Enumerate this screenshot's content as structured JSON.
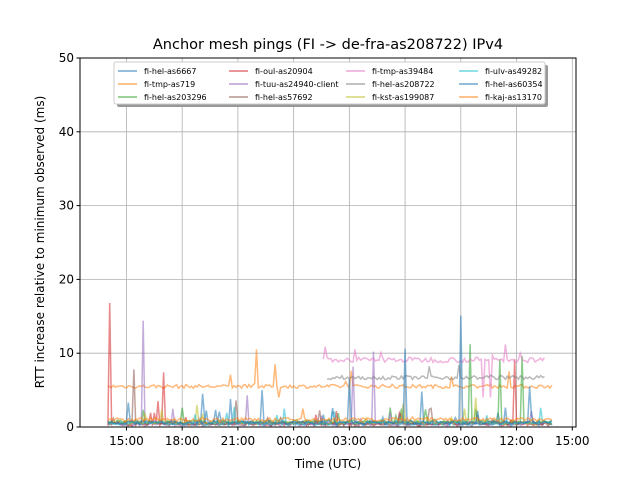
{
  "chart_data": {
    "type": "line",
    "title": "Anchor mesh pings (FI -> de-fra-as208722) IPv4",
    "xlabel": "Time (UTC)",
    "ylabel": "RTT increase relative to minimum observed (ms)",
    "ylim": [
      0,
      50
    ],
    "xlim_hours": [
      12.5,
      39.2
    ],
    "grid": true,
    "legend_placement": "top-center",
    "yticks": [
      0,
      10,
      20,
      30,
      40,
      50
    ],
    "xticks": [
      {
        "h": 15,
        "label": "15:00"
      },
      {
        "h": 18,
        "label": "18:00"
      },
      {
        "h": 21,
        "label": "21:00"
      },
      {
        "h": 24,
        "label": "00:00"
      },
      {
        "h": 27,
        "label": "03:00"
      },
      {
        "h": 30,
        "label": "06:00"
      },
      {
        "h": 33,
        "label": "09:00"
      },
      {
        "h": 36,
        "label": "12:00"
      },
      {
        "h": 39,
        "label": "15:00"
      }
    ],
    "series": [
      {
        "name": "fi-hel-as6667",
        "color": "#1f77b4",
        "start": 14,
        "end": 38,
        "base": 0.5,
        "spikes": [
          [
            15.1,
            3.3
          ],
          [
            19.1,
            4.5
          ],
          [
            20.6,
            3.8
          ],
          [
            22.3,
            5
          ],
          [
            30.9,
            4.8
          ]
        ]
      },
      {
        "name": "fi-tmp-as719",
        "color": "#ff7f0e",
        "start": 14,
        "end": 38,
        "base": 5.5,
        "spikes": [
          [
            22.0,
            10.5
          ],
          [
            23.0,
            8.5
          ],
          [
            23.2,
            4
          ]
        ]
      },
      {
        "name": "fi-hel-as203296",
        "color": "#2ca02c",
        "start": 14,
        "end": 38,
        "base": 0.7,
        "spikes": [
          [
            33.5,
            11.2
          ],
          [
            35.1,
            9.2
          ],
          [
            36.3,
            9.6
          ]
        ]
      },
      {
        "name": "fi-oul-as20904",
        "color": "#d62728",
        "start": 14,
        "end": 38,
        "base": 0.4,
        "spikes": [
          [
            14.1,
            16.8
          ],
          [
            16.7,
            3.5
          ],
          [
            17.0,
            7.4
          ],
          [
            35.9,
            9.2
          ]
        ]
      },
      {
        "name": "fi-tuu-as24940-client",
        "color": "#9467bd",
        "start": 14,
        "end": 38,
        "base": 0.4,
        "spikes": [
          [
            15.9,
            14.4
          ],
          [
            21.5,
            4.3
          ],
          [
            27.2,
            8.2
          ],
          [
            28.3,
            10.2
          ]
        ]
      },
      {
        "name": "fi-hel-as57692",
        "color": "#8c564b",
        "start": 14,
        "end": 38,
        "base": 0.5,
        "spikes": [
          [
            15.4,
            7.8
          ],
          [
            20.9,
            3.6
          ]
        ]
      },
      {
        "name": "fi-tmp-as39484",
        "color": "#e377c2",
        "start": 25.6,
        "end": 37.6,
        "base": 9.1,
        "spikes": [
          [
            25.5,
            15
          ],
          [
            34.2,
            4
          ],
          [
            34.6,
            4
          ]
        ]
      },
      {
        "name": "fi-hel-as208722",
        "color": "#7f7f7f",
        "start": 25.8,
        "end": 37.6,
        "base": 6.7,
        "spikes": []
      },
      {
        "name": "fi-kst-as199087",
        "color": "#bcbd22",
        "start": 14,
        "end": 38,
        "base": 0.6,
        "spikes": [
          [
            18.8,
            3
          ],
          [
            29.9,
            3.2
          ],
          [
            33.8,
            4
          ]
        ]
      },
      {
        "name": "fi-ulv-as49282",
        "color": "#17becf",
        "start": 14,
        "end": 38,
        "base": 0.5,
        "spikes": [
          [
            23.5,
            2.5
          ],
          [
            37.3,
            2.6
          ]
        ]
      },
      {
        "name": "fi-hel-as60354",
        "color": "#1f77b4",
        "start": 14,
        "end": 38,
        "base": 0.6,
        "spikes": [
          [
            33.0,
            15.1
          ],
          [
            30.0,
            10.6
          ],
          [
            27.0,
            6.5
          ],
          [
            36.7,
            5.5
          ]
        ]
      },
      {
        "name": "fi-kaj-as13170",
        "color": "#ff7f0e",
        "start": 14,
        "end": 38,
        "base": 1.0,
        "spikes": [
          [
            24.5,
            2.5
          ]
        ]
      }
    ]
  }
}
